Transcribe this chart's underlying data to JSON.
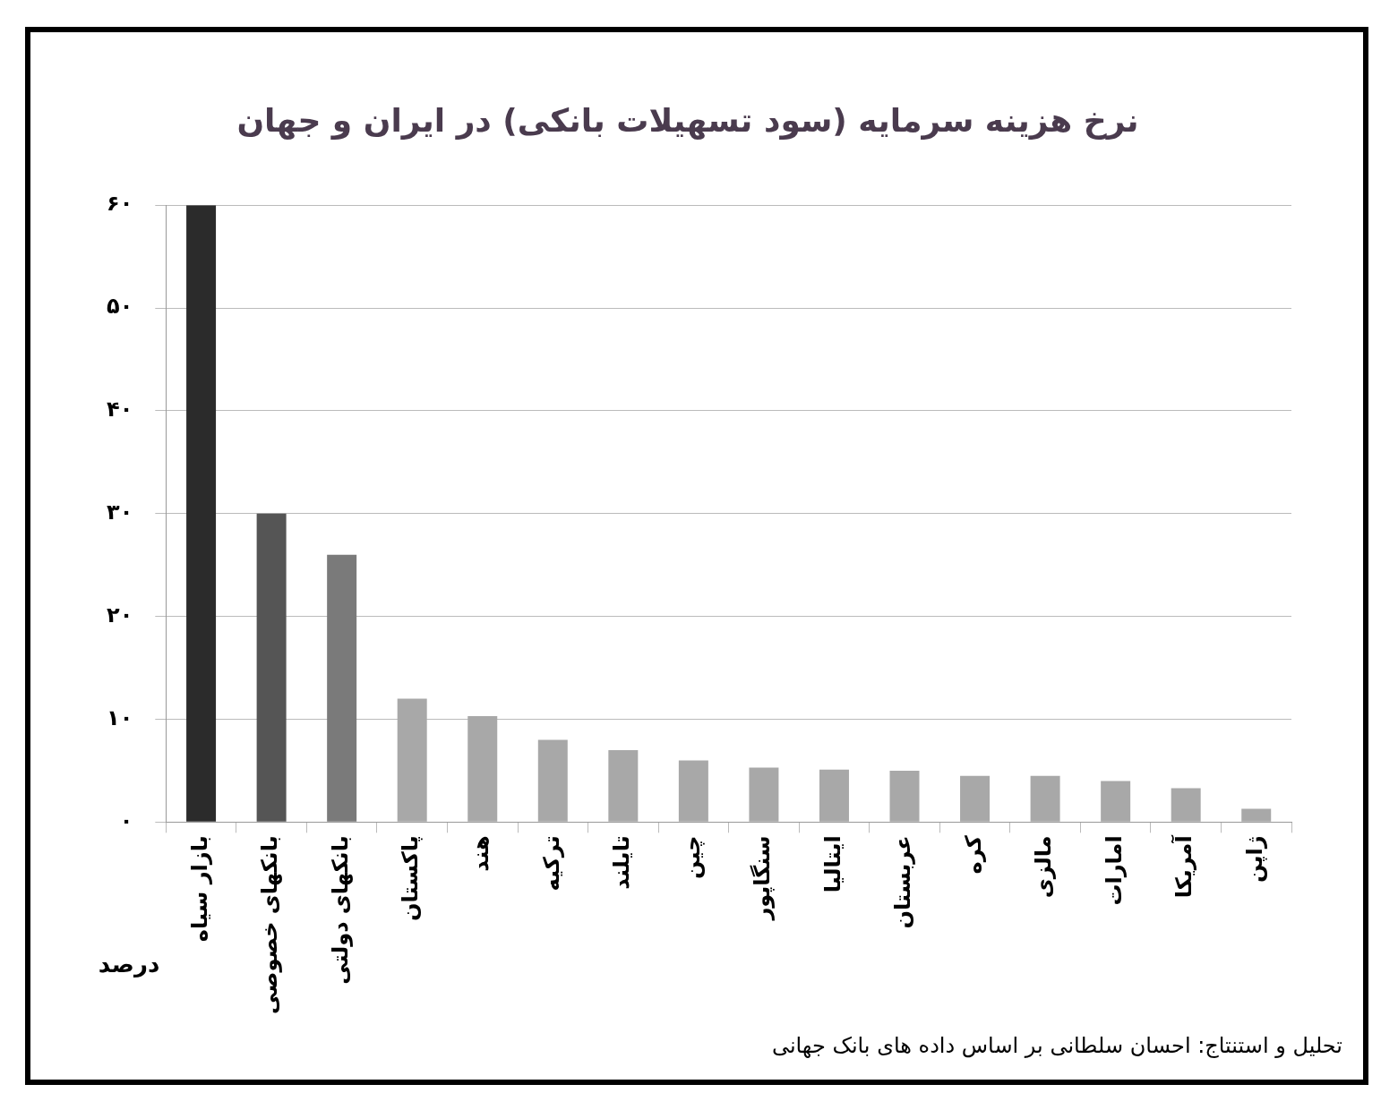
{
  "chart_data": {
    "type": "bar",
    "title": "نرخ هزینه سرمایه (سود تسهیلات بانکی) در ایران و جهان",
    "ylabel": "درصد",
    "categories": [
      "بازار سیاه",
      "بانکهای خصوصی",
      "بانکهای دولتی",
      "پاکستان",
      "هند",
      "ترکیه",
      "تایلند",
      "چین",
      "سنگاپور",
      "ایتالیا",
      "عربستان",
      "کره",
      "مالزی",
      "امارات",
      "آمریکا",
      "ژاپن"
    ],
    "values": [
      60,
      30,
      26,
      12,
      10.3,
      8,
      7,
      6,
      5.3,
      5.1,
      5,
      4.5,
      4.5,
      4,
      3.3,
      1.3
    ],
    "colors": [
      "#2b2b2b",
      "#555555",
      "#7a7a7a",
      "#a8a8a8",
      "#a8a8a8",
      "#a8a8a8",
      "#a8a8a8",
      "#a8a8a8",
      "#a8a8a8",
      "#a8a8a8",
      "#a8a8a8",
      "#a8a8a8",
      "#a8a8a8",
      "#a8a8a8",
      "#a8a8a8",
      "#a8a8a8"
    ],
    "ylim": [
      0,
      60
    ],
    "yticks": [
      {
        "value": 0,
        "label": "۰"
      },
      {
        "value": 10,
        "label": "۱۰"
      },
      {
        "value": 20,
        "label": "۲۰"
      },
      {
        "value": 30,
        "label": "۳۰"
      },
      {
        "value": 40,
        "label": "۴۰"
      },
      {
        "value": 50,
        "label": "۵۰"
      },
      {
        "value": 60,
        "label": "۶۰"
      }
    ],
    "grid": "y",
    "annotations": [
      "تحلیل و استنتاج: احسان سلطانی بر اساس داده های بانک جهانی"
    ]
  }
}
